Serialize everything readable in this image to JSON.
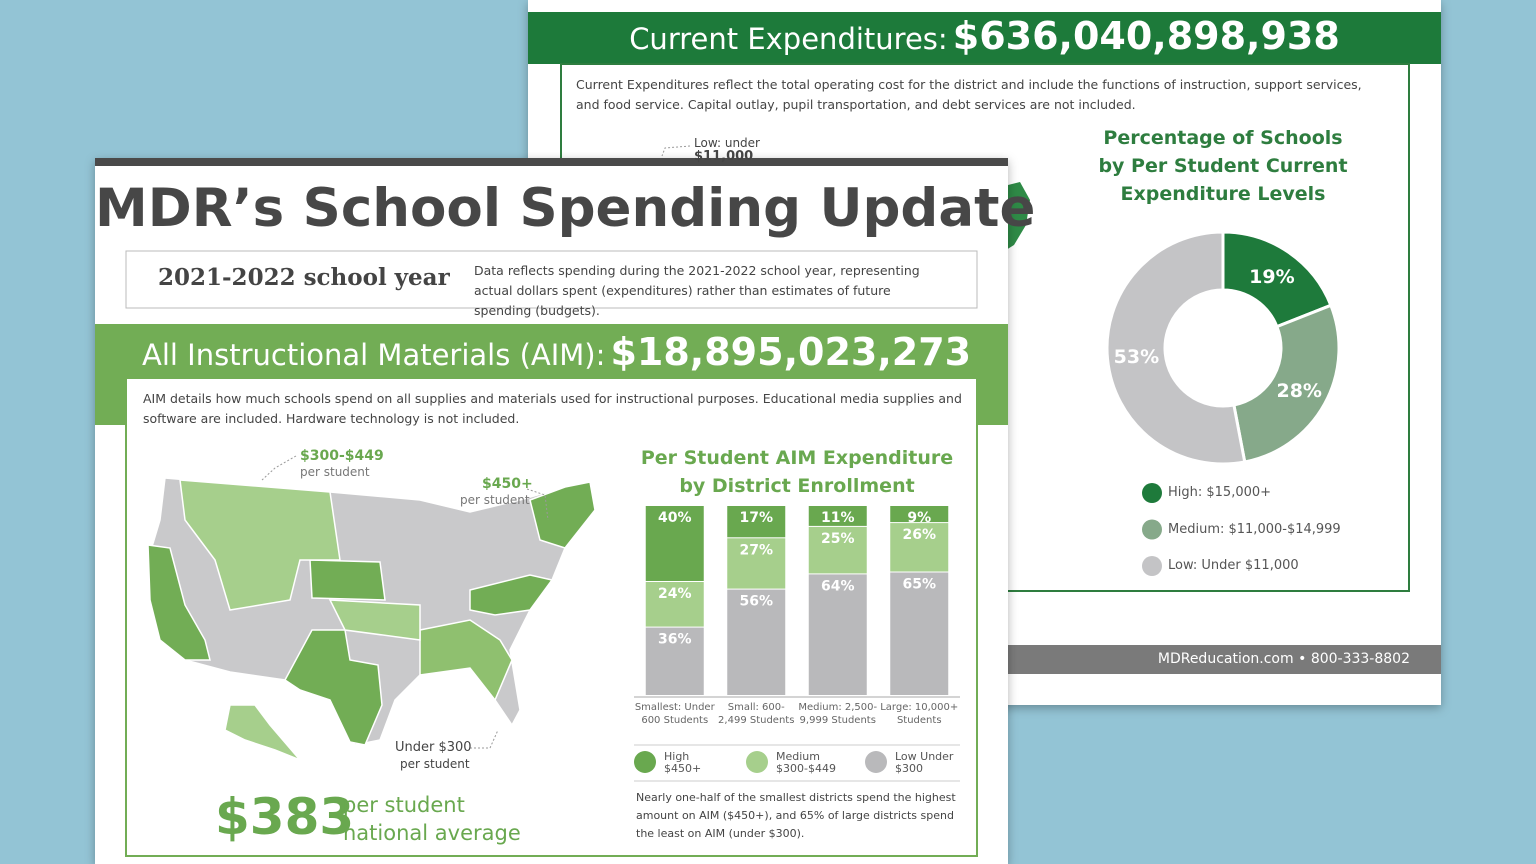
{
  "back_sheet": {
    "header_label": "Current Expenditures:",
    "header_amount": "$636,040,898,938",
    "description": "Current Expenditures reflect the total operating cost for the district and include the functions of instruction, support services, and food service. Capital outlay, pupil transportation, and debt services are not included.",
    "map_callout": [
      "Low: under",
      "$11,000"
    ]
  },
  "front_sheet": {
    "title": "MDR’s School Spending Update",
    "school_year": "2021-2022 school year",
    "note": "Data reflects spending during the 2021-2022 school year, representing actual dollars spent (expenditures) rather than estimates of future spending (budgets).",
    "aim_label": "All Instructional Materials (AIM):",
    "aim_amount": "$18,895,023,273",
    "aim_description": "AIM details how much schools spend on all supplies and materials used for instructional purposes. Educational media supplies and software are included. Hardware technology is not included.",
    "map_annotations": [
      {
        "amount": "$300-$449",
        "unit": "per student"
      },
      {
        "amount": "$450+",
        "unit": "per student"
      },
      {
        "amount": "Under $300",
        "unit": "per student"
      }
    ],
    "national_average": {
      "amount": "$383",
      "unit": "per student",
      "label": "national average"
    },
    "chart_note": "Nearly one-half of the smallest districts spend the highest amount on AIM ($450+), and 65% of large districts spend the least on AIM (under $300)."
  },
  "footer": {
    "website": "MDReducation.com",
    "phone": "800-333-8802"
  },
  "chart_data": [
    {
      "type": "stacked_bar",
      "title": "Per Student AIM Expenditure by District Enrollment",
      "categories": [
        "Smallest: Under 600 Students",
        "Small: 600-2,499 Students",
        "Medium: 2,500-9,999 Students",
        "Large: 10,000+ Students"
      ],
      "series": [
        {
          "name": "High $450+",
          "color": "#69a84f",
          "values": [
            40,
            17,
            11,
            9
          ],
          "value_labels": [
            "40%",
            "17%",
            "11%",
            "9%"
          ]
        },
        {
          "name": "Medium $300-$449",
          "color": "#a6cf8c",
          "values": [
            24,
            27,
            25,
            26
          ],
          "value_labels": [
            "24%",
            "27%",
            "25%",
            "26%"
          ]
        },
        {
          "name": "Low Under $300",
          "color": "#b9b9bb",
          "values": [
            36,
            56,
            64,
            65
          ],
          "value_labels": [
            "36%",
            "56%",
            "64%",
            "65%"
          ]
        }
      ]
    },
    {
      "type": "donut",
      "title": "Percentage of Schools by Per Student Current Expenditure Levels",
      "categories": [
        "High: $15,000+",
        "Medium: $11,000-$14,999",
        "Low: Under $11,000"
      ],
      "colors": [
        "#1e7a3b",
        "#86a98a",
        "#c4c4c6"
      ],
      "values": [
        19,
        28,
        53
      ],
      "value_labels": [
        "19%",
        "28%",
        "53%"
      ]
    }
  ]
}
